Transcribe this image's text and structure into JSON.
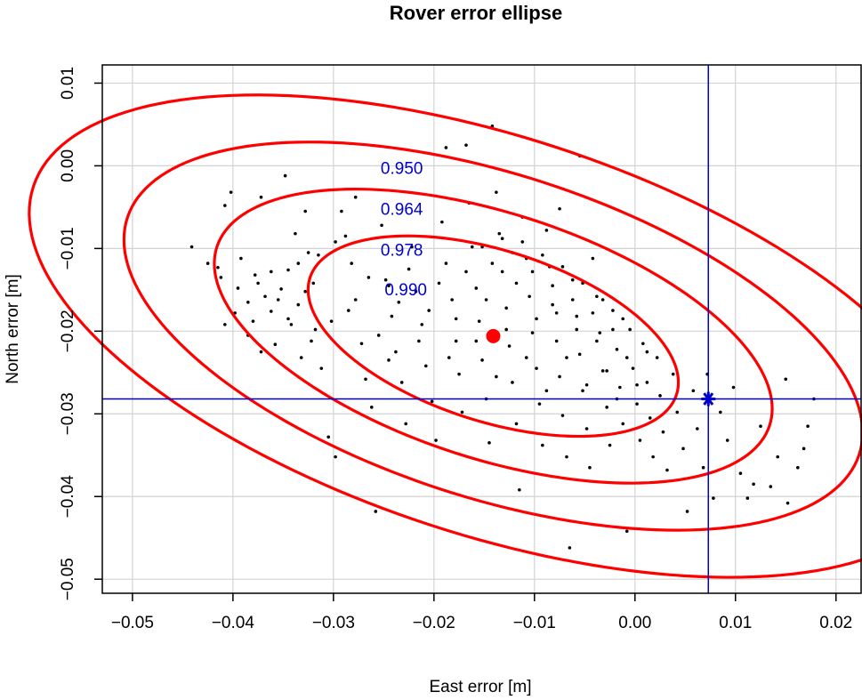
{
  "chart_data": {
    "type": "scatter",
    "title": "Rover error ellipse",
    "xlabel": "East error [m]",
    "ylabel": "North error [m]",
    "xlim": [
      -0.053,
      0.0225
    ],
    "ylim": [
      -0.0517,
      0.0122
    ],
    "x_ticks": [
      -0.05,
      -0.04,
      -0.03,
      -0.02,
      -0.01,
      0.0,
      0.01,
      0.02
    ],
    "x_tick_labels": [
      "−0.05",
      "−0.04",
      "−0.03",
      "−0.02",
      "−0.01",
      "0.00",
      "0.01",
      "0.02"
    ],
    "y_ticks": [
      0.01,
      0.0,
      -0.01,
      -0.02,
      -0.03,
      -0.04,
      -0.05
    ],
    "y_tick_labels": [
      "0.01",
      "0.00",
      "−0.01",
      "−0.02",
      "−0.03",
      "−0.04",
      "−0.05"
    ],
    "grid": true,
    "colors": {
      "points": "#000000",
      "ellipse": "#ff0000",
      "center": "#ff0000",
      "reference": "#0000cc",
      "contour_label": "#0000cc",
      "grid": "#d3d3d3"
    },
    "center": {
      "x": -0.0141,
      "y": -0.0206
    },
    "reference_point": {
      "x": 0.0073,
      "y": -0.0282,
      "marker": "asterisk"
    },
    "ellipses": [
      {
        "level": "0.990",
        "semi_major": 0.0196,
        "semi_minor": 0.0101,
        "angle_deg": -23.5
      },
      {
        "level": "0.978",
        "semi_major": 0.0296,
        "semi_minor": 0.0145,
        "angle_deg": -23.5
      },
      {
        "level": "0.964",
        "semi_major": 0.0392,
        "semi_minor": 0.0191,
        "angle_deg": -23.5
      },
      {
        "level": "0.950",
        "semi_major": 0.0493,
        "semi_minor": 0.0235,
        "angle_deg": -23.5
      }
    ],
    "contour_labels": [
      {
        "text": "0.950",
        "x": -0.0232,
        "y": -0.0002
      },
      {
        "text": "0.964",
        "x": -0.0232,
        "y": -0.0052
      },
      {
        "text": "0.978",
        "x": -0.0232,
        "y": -0.0101
      },
      {
        "text": "0.990",
        "x": -0.0228,
        "y": -0.0149
      }
    ],
    "points": [
      [
        -0.0441,
        -0.0098
      ],
      [
        -0.0425,
        -0.0118
      ],
      [
        -0.0415,
        -0.0123
      ],
      [
        -0.0408,
        -0.0048
      ],
      [
        -0.0402,
        -0.0032
      ],
      [
        -0.0395,
        -0.0148
      ],
      [
        -0.0392,
        -0.0112
      ],
      [
        -0.0385,
        -0.0165
      ],
      [
        -0.038,
        -0.0188
      ],
      [
        -0.0378,
        -0.0132
      ],
      [
        -0.0372,
        -0.0038
      ],
      [
        -0.0368,
        -0.0158
      ],
      [
        -0.0362,
        -0.0176
      ],
      [
        -0.0358,
        -0.0216
      ],
      [
        -0.0352,
        -0.0149
      ],
      [
        -0.0348,
        -0.0012
      ],
      [
        -0.0345,
        -0.0126
      ],
      [
        -0.0342,
        -0.0192
      ],
      [
        -0.0338,
        -0.0082
      ],
      [
        -0.0335,
        -0.0168
      ],
      [
        -0.0332,
        -0.0232
      ],
      [
        -0.0328,
        -0.0055
      ],
      [
        -0.0325,
        -0.0105
      ],
      [
        -0.032,
        -0.0142
      ],
      [
        -0.0318,
        -0.0198
      ],
      [
        -0.0312,
        -0.0245
      ],
      [
        -0.0305,
        -0.0328
      ],
      [
        -0.0298,
        -0.0352
      ],
      [
        -0.0292,
        -0.0055
      ],
      [
        -0.0288,
        -0.0085
      ],
      [
        -0.0282,
        -0.0118
      ],
      [
        -0.0278,
        -0.0162
      ],
      [
        -0.0272,
        -0.0215
      ],
      [
        -0.0268,
        -0.0258
      ],
      [
        -0.0262,
        -0.0292
      ],
      [
        -0.0258,
        -0.0418
      ],
      [
        -0.0252,
        -0.0072
      ],
      [
        -0.0248,
        -0.0138
      ],
      [
        -0.0242,
        -0.0182
      ],
      [
        -0.0238,
        -0.0225
      ],
      [
        -0.0232,
        -0.0262
      ],
      [
        -0.0228,
        -0.0312
      ],
      [
        -0.0222,
        -0.0098
      ],
      [
        -0.0218,
        -0.0152
      ],
      [
        -0.0212,
        -0.0192
      ],
      [
        -0.0208,
        -0.0242
      ],
      [
        -0.0202,
        -0.0285
      ],
      [
        -0.0198,
        -0.0332
      ],
      [
        -0.0192,
        -0.0068
      ],
      [
        -0.0188,
        -0.0118
      ],
      [
        -0.0182,
        -0.0162
      ],
      [
        -0.0178,
        -0.0212
      ],
      [
        -0.0175,
        -0.0252
      ],
      [
        -0.0172,
        -0.0298
      ],
      [
        -0.0168,
        0.0025
      ],
      [
        -0.0165,
        -0.0045
      ],
      [
        -0.0162,
        -0.0098
      ],
      [
        -0.0158,
        -0.0148
      ],
      [
        -0.0155,
        -0.0188
      ],
      [
        -0.0152,
        -0.0235
      ],
      [
        -0.0148,
        -0.0282
      ],
      [
        -0.0145,
        -0.0335
      ],
      [
        -0.0142,
        0.0048
      ],
      [
        -0.0138,
        -0.0032
      ],
      [
        -0.0135,
        -0.0082
      ],
      [
        -0.0132,
        -0.0128
      ],
      [
        -0.0128,
        -0.0172
      ],
      [
        -0.0125,
        -0.0218
      ],
      [
        -0.0122,
        -0.0262
      ],
      [
        -0.0118,
        -0.0312
      ],
      [
        -0.0115,
        -0.0392
      ],
      [
        -0.0112,
        -0.0062
      ],
      [
        -0.0108,
        -0.0112
      ],
      [
        -0.0105,
        -0.0158
      ],
      [
        -0.0102,
        -0.0202
      ],
      [
        -0.0098,
        -0.0245
      ],
      [
        -0.0095,
        -0.0288
      ],
      [
        -0.0092,
        -0.0338
      ],
      [
        -0.0088,
        -0.0078
      ],
      [
        -0.0085,
        -0.0122
      ],
      [
        -0.0082,
        -0.0168
      ],
      [
        -0.0078,
        -0.0212
      ],
      [
        -0.0075,
        -0.0255
      ],
      [
        -0.0072,
        -0.0302
      ],
      [
        -0.0068,
        -0.0352
      ],
      [
        -0.0065,
        -0.0462
      ],
      [
        -0.0062,
        -0.0138
      ],
      [
        -0.0058,
        -0.0182
      ],
      [
        -0.0055,
        -0.0228
      ],
      [
        -0.0052,
        -0.0272
      ],
      [
        -0.0048,
        -0.0318
      ],
      [
        -0.0045,
        -0.0365
      ],
      [
        -0.0042,
        -0.0112
      ],
      [
        -0.0038,
        -0.0158
      ],
      [
        -0.0035,
        -0.0202
      ],
      [
        -0.0032,
        -0.0248
      ],
      [
        -0.0028,
        -0.0292
      ],
      [
        -0.0025,
        -0.0338
      ],
      [
        -0.0022,
        -0.0175
      ],
      [
        -0.0018,
        -0.0222
      ],
      [
        -0.0015,
        -0.0268
      ],
      [
        -0.0012,
        -0.0312
      ],
      [
        -0.0008,
        -0.0442
      ],
      [
        -0.0005,
        -0.0198
      ],
      [
        -0.0002,
        -0.0245
      ],
      [
        0.0002,
        -0.0288
      ],
      [
        0.0005,
        -0.0332
      ],
      [
        0.0008,
        -0.0215
      ],
      [
        0.0012,
        -0.0262
      ],
      [
        0.0015,
        -0.0305
      ],
      [
        0.0018,
        -0.0352
      ],
      [
        0.0022,
        -0.0232
      ],
      [
        0.0025,
        -0.0278
      ],
      [
        0.0028,
        -0.0322
      ],
      [
        0.0032,
        -0.0368
      ],
      [
        0.0038,
        -0.0252
      ],
      [
        0.0042,
        -0.0298
      ],
      [
        0.0048,
        -0.0342
      ],
      [
        0.0052,
        -0.0418
      ],
      [
        0.0058,
        -0.0272
      ],
      [
        0.0062,
        -0.0318
      ],
      [
        0.0068,
        -0.0365
      ],
      [
        0.0072,
        -0.0252
      ],
      [
        0.0078,
        -0.0402
      ],
      [
        0.0085,
        -0.0298
      ],
      [
        0.0092,
        -0.0332
      ],
      [
        0.0098,
        -0.0268
      ],
      [
        0.0105,
        -0.0372
      ],
      [
        0.0112,
        -0.0402
      ],
      [
        0.0118,
        -0.0385
      ],
      [
        0.0125,
        -0.0315
      ],
      [
        0.0135,
        -0.0388
      ],
      [
        0.0142,
        -0.0352
      ],
      [
        0.015,
        -0.0258
      ],
      [
        0.0152,
        -0.0408
      ],
      [
        0.0162,
        -0.0365
      ],
      [
        0.0168,
        -0.0342
      ],
      [
        0.0172,
        -0.0315
      ],
      [
        0.0178,
        -0.0282
      ],
      [
        -0.0055,
        0.0012
      ],
      [
        -0.0075,
        -0.0052
      ],
      [
        -0.0188,
        0.0022
      ],
      [
        -0.0245,
        -0.0145
      ],
      [
        -0.0278,
        -0.0038
      ],
      [
        -0.0302,
        -0.0188
      ],
      [
        -0.0355,
        -0.0162
      ],
      [
        -0.0372,
        -0.0225
      ],
      [
        -0.0408,
        -0.0192
      ],
      [
        -0.0385,
        -0.0205
      ],
      [
        -0.0362,
        -0.0128
      ],
      [
        -0.0328,
        -0.0152
      ],
      [
        -0.0315,
        -0.0108
      ],
      [
        -0.0298,
        -0.0092
      ],
      [
        -0.0285,
        -0.0175
      ],
      [
        -0.0265,
        -0.0135
      ],
      [
        -0.0255,
        -0.0205
      ],
      [
        -0.0245,
        -0.0235
      ],
      [
        -0.0235,
        -0.0165
      ],
      [
        -0.0225,
        -0.0125
      ],
      [
        -0.0215,
        -0.0212
      ],
      [
        -0.0205,
        -0.0175
      ],
      [
        -0.0195,
        -0.0142
      ],
      [
        -0.0185,
        -0.0232
      ],
      [
        -0.0178,
        -0.0185
      ],
      [
        -0.0168,
        -0.0128
      ],
      [
        -0.0158,
        -0.0212
      ],
      [
        -0.0148,
        -0.0162
      ],
      [
        -0.0138,
        -0.0255
      ],
      [
        -0.0128,
        -0.0198
      ],
      [
        -0.0118,
        -0.0142
      ],
      [
        -0.0108,
        -0.0232
      ],
      [
        -0.0098,
        -0.0185
      ],
      [
        -0.0088,
        -0.0272
      ],
      [
        -0.0078,
        -0.0178
      ],
      [
        -0.0068,
        -0.0232
      ],
      [
        -0.0058,
        -0.0198
      ],
      [
        -0.0048,
        -0.0265
      ],
      [
        -0.0038,
        -0.0212
      ],
      [
        -0.0028,
        -0.0248
      ],
      [
        -0.0018,
        -0.0282
      ],
      [
        -0.0008,
        -0.0232
      ],
      [
        0.0002,
        -0.0265
      ],
      [
        -0.0152,
        -0.0098
      ],
      [
        -0.0142,
        -0.0118
      ],
      [
        -0.0132,
        -0.0088
      ],
      [
        -0.0122,
        -0.0105
      ],
      [
        -0.0112,
        -0.0092
      ],
      [
        -0.0102,
        -0.0128
      ],
      [
        -0.0092,
        -0.0108
      ],
      [
        -0.0082,
        -0.0145
      ],
      [
        -0.0072,
        -0.0122
      ],
      [
        -0.0062,
        -0.0162
      ],
      [
        -0.0052,
        -0.0142
      ],
      [
        -0.0042,
        -0.0178
      ],
      [
        -0.0032,
        -0.0162
      ],
      [
        -0.0022,
        -0.0198
      ],
      [
        -0.0012,
        -0.0185
      ],
      [
        0.0012,
        -0.0225
      ],
      [
        -0.0398,
        -0.0178
      ],
      [
        -0.0412,
        -0.0135
      ],
      [
        -0.0375,
        -0.0142
      ],
      [
        -0.0345,
        -0.0185
      ],
      [
        -0.0335,
        -0.0118
      ],
      [
        -0.0322,
        -0.0212
      ]
    ]
  }
}
